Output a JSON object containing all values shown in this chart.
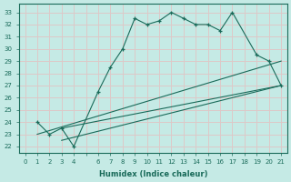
{
  "xlabel": "Humidex (Indice chaleur)",
  "ylabel": "",
  "xlim": [
    -0.5,
    21.5
  ],
  "ylim": [
    21.5,
    33.7
  ],
  "yticks": [
    22,
    23,
    24,
    25,
    26,
    27,
    28,
    29,
    30,
    31,
    32,
    33
  ],
  "xticks": [
    0,
    1,
    2,
    3,
    4,
    6,
    7,
    8,
    9,
    10,
    11,
    12,
    13,
    14,
    15,
    16,
    17,
    18,
    19,
    20,
    21
  ],
  "bg_color": "#c5eae5",
  "grid_color": "#ddc8c8",
  "line_color": "#1a6b5a",
  "line1_x": [
    1,
    2,
    3,
    4,
    6,
    7,
    8,
    9,
    10,
    11,
    12,
    13,
    14,
    15,
    16,
    17,
    19,
    20,
    21
  ],
  "line1_y": [
    24.0,
    23.0,
    23.5,
    22.0,
    26.5,
    28.5,
    30.0,
    32.5,
    32.0,
    32.3,
    33.0,
    32.5,
    32.0,
    32.0,
    31.5,
    33.0,
    29.5,
    29.0,
    27.0
  ],
  "line2_x": [
    1,
    21
  ],
  "line2_y": [
    23.0,
    29.0
  ],
  "line3_x": [
    3,
    21
  ],
  "line3_y": [
    22.5,
    27.0
  ],
  "line4_x": [
    3,
    21
  ],
  "line4_y": [
    23.5,
    27.0
  ]
}
